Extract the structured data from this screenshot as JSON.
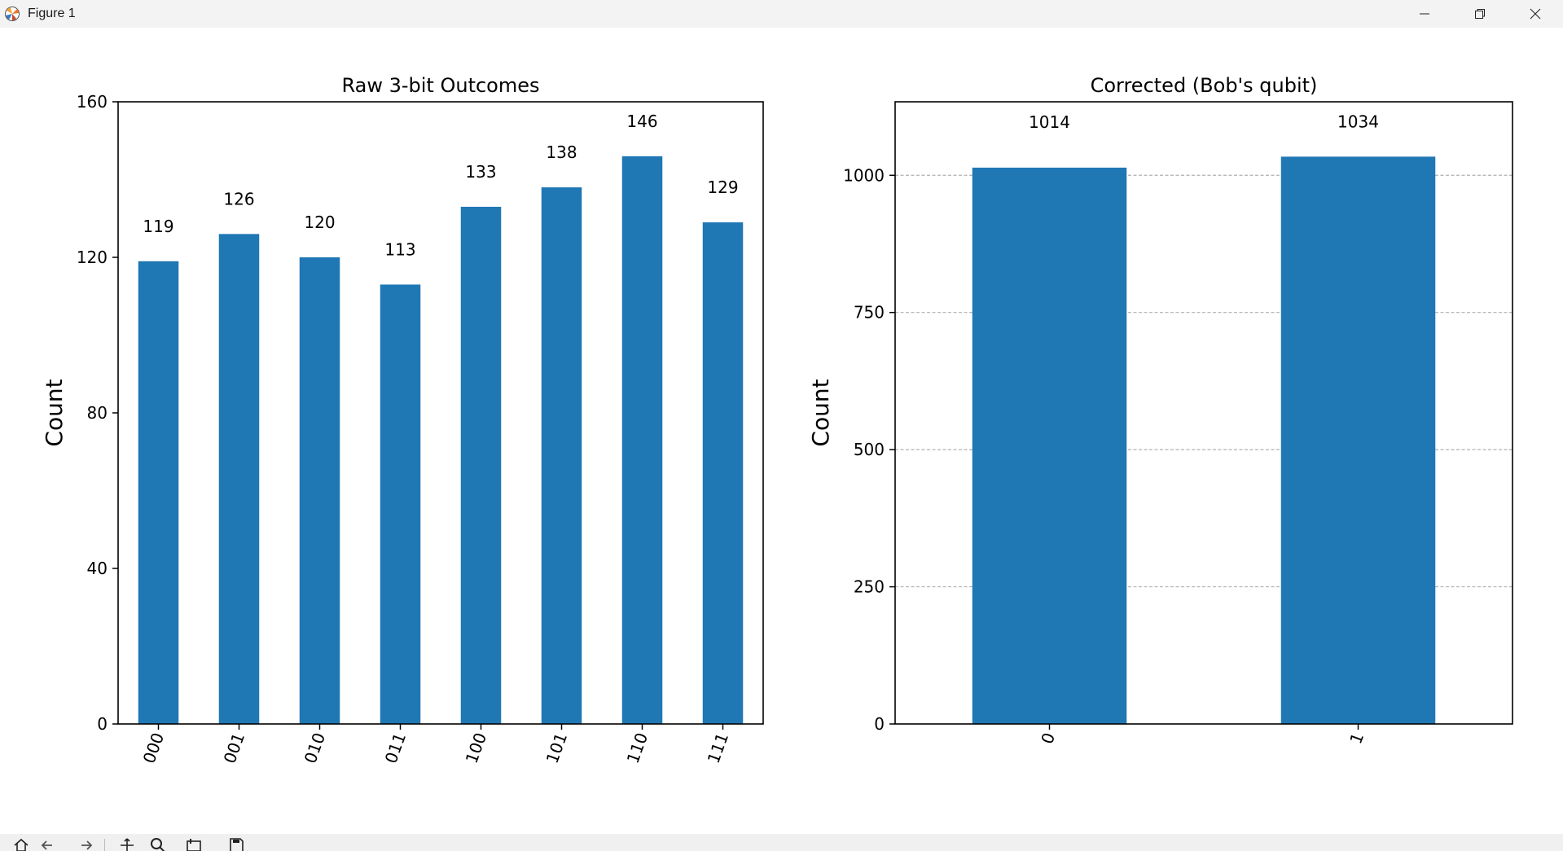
{
  "window": {
    "title": "Figure 1",
    "icons": {
      "app": "matplotlib-logo-icon",
      "minimize": "minimize-icon",
      "restore": "restore-icon",
      "close": "close-icon"
    }
  },
  "toolbar": {
    "icons": [
      "home-icon",
      "back-arrow-icon",
      "forward-arrow-icon",
      "pan-icon",
      "zoom-icon",
      "configure-subplots-icon",
      "save-icon"
    ]
  },
  "colors": {
    "bar": "#1f77b4",
    "grid": "#b0b0b0",
    "axis": "#000000"
  },
  "chart_data": [
    {
      "type": "bar",
      "title": "Raw 3-bit Outcomes",
      "xlabel": "",
      "ylabel": "Count",
      "categories": [
        "000",
        "001",
        "010",
        "011",
        "100",
        "101",
        "110",
        "111"
      ],
      "values": [
        119,
        126,
        120,
        113,
        133,
        138,
        146,
        129
      ],
      "data_labels": [
        "119",
        "126",
        "120",
        "113",
        "133",
        "138",
        "146",
        "129"
      ],
      "ylim": [
        0,
        160
      ],
      "yticks": [
        0,
        40,
        80,
        120,
        160
      ],
      "ytick_labels": [
        "0",
        "40",
        "80",
        "120",
        "160"
      ],
      "grid": false,
      "tick_rotation": 70
    },
    {
      "type": "bar",
      "title": "Corrected (Bob's qubit)",
      "xlabel": "",
      "ylabel": "Count",
      "categories": [
        "0",
        "1"
      ],
      "values": [
        1014,
        1034
      ],
      "data_labels": [
        "1014",
        "1034"
      ],
      "ylim": [
        0,
        1134
      ],
      "yticks": [
        0,
        250,
        500,
        750,
        1000
      ],
      "ytick_labels": [
        "0",
        "250",
        "500",
        "750",
        "1000"
      ],
      "grid": true,
      "grid_style": "dashed-horizontal",
      "tick_rotation": 70
    }
  ]
}
